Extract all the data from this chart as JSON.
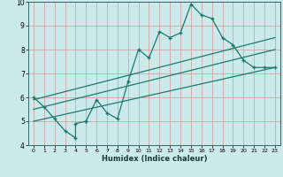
{
  "xlabel": "Humidex (Indice chaleur)",
  "bg_color": "#cceaea",
  "grid_color": "#cc9999",
  "line_color": "#1a7a6e",
  "xlim": [
    -0.5,
    23.5
  ],
  "ylim": [
    4,
    10
  ],
  "xticks": [
    0,
    1,
    2,
    3,
    4,
    5,
    6,
    7,
    8,
    9,
    10,
    11,
    12,
    13,
    14,
    15,
    16,
    17,
    18,
    19,
    20,
    21,
    22,
    23
  ],
  "yticks": [
    4,
    5,
    6,
    7,
    8,
    9,
    10
  ],
  "series1_x": [
    0,
    1,
    2,
    3,
    4,
    4,
    5,
    5,
    6,
    7,
    8,
    9,
    10,
    11,
    12,
    13,
    14,
    15,
    16,
    17,
    18,
    19,
    20,
    21,
    22,
    23
  ],
  "series1_y": [
    6.0,
    5.6,
    5.1,
    4.6,
    4.3,
    4.9,
    5.0,
    5.0,
    5.9,
    5.35,
    5.1,
    6.65,
    8.0,
    7.65,
    8.75,
    8.5,
    8.7,
    9.9,
    9.45,
    9.3,
    8.5,
    8.2,
    7.55,
    7.25,
    7.25,
    7.25
  ],
  "series2_x": [
    0,
    23
  ],
  "series2_y": [
    5.9,
    8.5
  ],
  "series3_x": [
    0,
    23
  ],
  "series3_y": [
    5.5,
    8.0
  ],
  "series4_x": [
    0,
    23
  ],
  "series4_y": [
    5.0,
    7.25
  ]
}
